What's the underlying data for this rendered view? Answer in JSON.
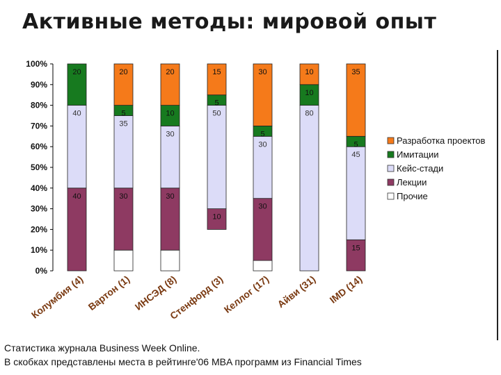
{
  "title": "Активные методы: мировой опыт",
  "footnotes": [
    "Статистика журнала Business Week Online.",
    "В скобках представлены места в рейтинге'06 MBA программ из Financial Times"
  ],
  "chart_data": {
    "type": "bar",
    "stacked": true,
    "categories": [
      "Колумбия (4)",
      "Вартон (1)",
      "ИНСЭД (8)",
      "Стенфорд (3)",
      "Келлог (17)",
      "Айви (31)",
      "IMD (14)"
    ],
    "yticks": [
      "0%",
      "10%",
      "20%",
      "30%",
      "40%",
      "50%",
      "60%",
      "70%",
      "80%",
      "90%",
      "100%"
    ],
    "ylim": [
      0,
      100
    ],
    "legend_position": "right",
    "series": [
      {
        "name": "Прочие",
        "color": "#ffffff",
        "values": [
          0,
          10,
          10,
          0,
          5,
          0,
          0
        ],
        "labels": [
          "",
          "",
          "",
          "",
          "",
          "",
          ""
        ]
      },
      {
        "name": "Лекции",
        "color": "#8e3a62",
        "values": [
          40,
          30,
          30,
          10,
          30,
          0,
          15
        ],
        "labels": [
          "40",
          "30",
          "30",
          "10",
          "30",
          "",
          "15"
        ]
      },
      {
        "name": "Кейс-стади",
        "color": "#dcdcf8",
        "values": [
          40,
          35,
          30,
          50,
          30,
          80,
          45
        ],
        "labels": [
          "40",
          "35",
          "30",
          "50",
          "30",
          "80",
          "45"
        ]
      },
      {
        "name": "Имитации",
        "color": "#177a1f",
        "values": [
          20,
          5,
          10,
          5,
          5,
          10,
          5
        ],
        "labels": [
          "20",
          "5",
          "10",
          "5",
          "5",
          "10",
          "5"
        ]
      },
      {
        "name": "Разработка проектов",
        "color": "#f57a1a",
        "values": [
          0,
          20,
          20,
          15,
          30,
          10,
          35
        ],
        "labels": [
          "",
          "20",
          "20",
          "15",
          "30",
          "10",
          "35"
        ]
      }
    ],
    "bar_offsets": [
      0,
      0,
      0,
      20,
      0,
      0,
      0
    ],
    "legend_order": [
      "Разработка проектов",
      "Имитации",
      "Кейс-стади",
      "Лекции",
      "Прочие"
    ]
  }
}
